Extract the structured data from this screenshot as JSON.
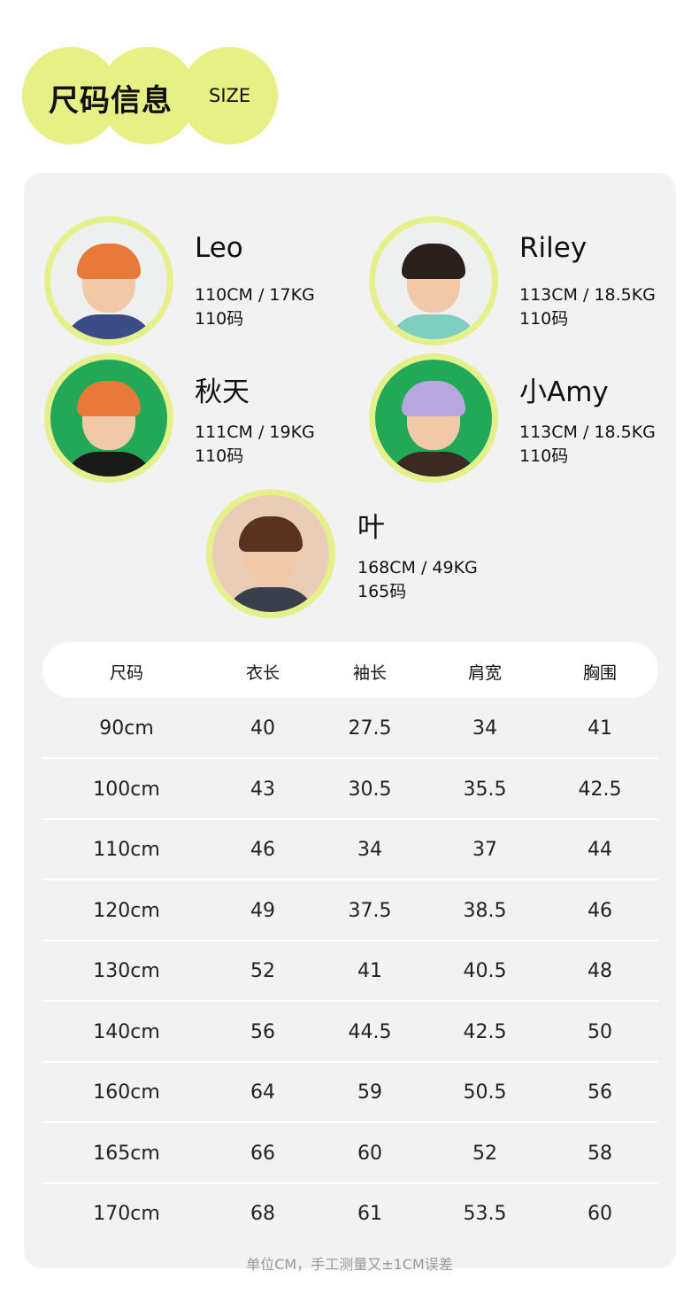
{
  "header": {
    "title": "尺码信息",
    "subtitle": "SIZE",
    "accent": "#e7f084"
  },
  "models": [
    {
      "name": "Leo",
      "stats": "110CM / 17KG",
      "size": "110码",
      "bg": "#eef0f0",
      "hair": "#e8793a",
      "shirt": "#3b4c86"
    },
    {
      "name": "Riley",
      "stats": "113CM / 18.5KG",
      "size": "110码",
      "bg": "#eef0ef",
      "hair": "#2a211c",
      "shirt": "#7fcfc0"
    },
    {
      "name": "秋天",
      "stats": "111CM / 19KG",
      "size": "110码",
      "bg": "#22a957",
      "hair": "#e8793a",
      "shirt": "#1a1a1a"
    },
    {
      "name": "小Amy",
      "stats": "113CM / 18.5KG",
      "size": "110码",
      "bg": "#22a957",
      "hair": "#b7a7de",
      "shirt": "#3a2a22"
    },
    {
      "name": "叶",
      "stats": "168CM / 49KG",
      "size": "165码",
      "bg": "#e9cdb6",
      "hair": "#5a3320",
      "shirt": "#3a3f4c"
    }
  ],
  "table": {
    "headers": [
      "尺码",
      "衣长",
      "袖长",
      "肩宽",
      "胸围"
    ],
    "rows": [
      [
        "90cm",
        "40",
        "27.5",
        "34",
        "41"
      ],
      [
        "100cm",
        "43",
        "30.5",
        "35.5",
        "42.5"
      ],
      [
        "110cm",
        "46",
        "34",
        "37",
        "44"
      ],
      [
        "120cm",
        "49",
        "37.5",
        "38.5",
        "46"
      ],
      [
        "130cm",
        "52",
        "41",
        "40.5",
        "48"
      ],
      [
        "140cm",
        "56",
        "44.5",
        "42.5",
        "50"
      ],
      [
        "160cm",
        "64",
        "59",
        "50.5",
        "56"
      ],
      [
        "165cm",
        "66",
        "60",
        "52",
        "58"
      ],
      [
        "170cm",
        "68",
        "61",
        "53.5",
        "60"
      ]
    ]
  },
  "note": "单位CM，手工测量又±1CM误差"
}
